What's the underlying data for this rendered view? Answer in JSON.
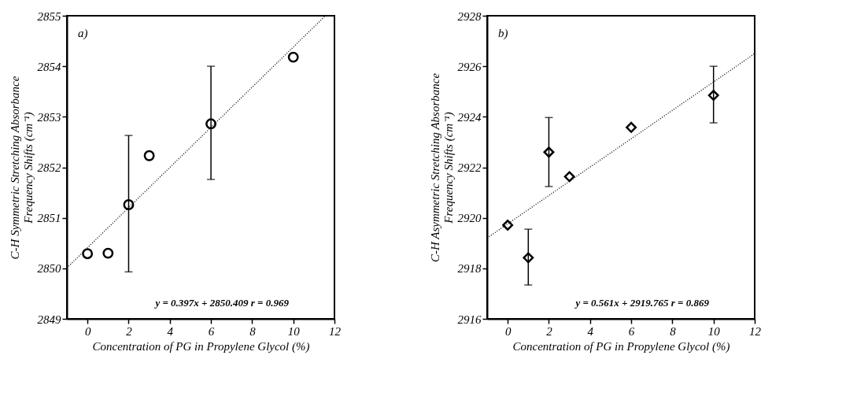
{
  "chart_data": [
    {
      "type": "scatter",
      "xlabel": "Concentration of PG in Propylene Glycol (%)",
      "ylabel": "C-H Symmetric Stretching Absorbance\nFrequency Shifts (cm⁻¹)",
      "xlim": [
        -1,
        12
      ],
      "xticks": [
        0,
        2,
        4,
        6,
        8,
        10,
        12
      ],
      "ylim": [
        2849,
        2855
      ],
      "yticks": [
        2849,
        2850,
        2851,
        2852,
        2853,
        2854,
        2855
      ],
      "grid": false,
      "annotations": [
        "a)",
        "y = 0.397x + 2850.409     r = 0.969"
      ],
      "series": [
        {
          "marker": "circle",
          "color": "#000000",
          "x": [
            0,
            1,
            2,
            3,
            6,
            10
          ],
          "values": [
            2850.29,
            2850.3,
            2851.26,
            2852.23,
            2852.86,
            2854.18
          ],
          "errors": [
            null,
            null,
            [
              2849.93,
              2852.63
            ],
            null,
            [
              2851.76,
              2854.0
            ],
            null
          ]
        },
        {
          "type": "line",
          "line_style": "dotted",
          "color": "#000000",
          "x": [
            -1,
            11.56
          ],
          "values": [
            2850.01,
            2855.0
          ]
        }
      ]
    },
    {
      "type": "scatter",
      "xlabel": "Concentration of PG in Propylene Glycol (%)",
      "ylabel": "C-H Asymmetric Stretching Absorbance\nFrequency Shifts (cm⁻¹)",
      "xlim": [
        -1,
        12
      ],
      "xticks": [
        0,
        2,
        4,
        6,
        8,
        10,
        12
      ],
      "ylim": [
        2916,
        2928
      ],
      "yticks": [
        2916,
        2918,
        2920,
        2922,
        2924,
        2926,
        2928
      ],
      "grid": false,
      "annotations": [
        "b)",
        "y = 0.561x + 2919.765     r = 0.869"
      ],
      "series": [
        {
          "marker": "diamond",
          "color": "#000000",
          "x": [
            0,
            1,
            2,
            3,
            6,
            10
          ],
          "values": [
            2919.71,
            2918.42,
            2922.6,
            2921.63,
            2923.58,
            2924.85
          ],
          "errors": [
            null,
            [
              2917.34,
              2919.55
            ],
            [
              2921.24,
              2923.97
            ],
            null,
            null,
            [
              2923.76,
              2926.0
            ]
          ]
        },
        {
          "type": "line",
          "line_style": "dotted",
          "color": "#000000",
          "x": [
            -1,
            12
          ],
          "values": [
            2919.2,
            2926.5
          ]
        }
      ]
    }
  ]
}
